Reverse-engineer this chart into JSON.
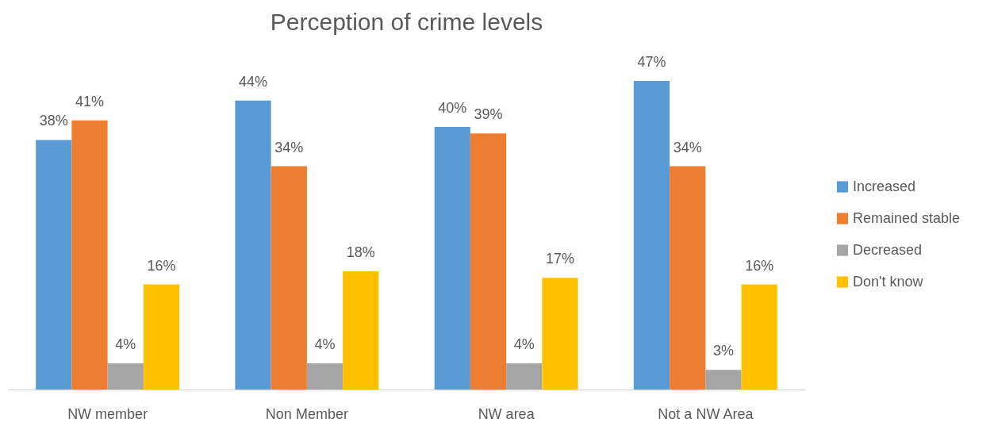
{
  "chart_data": {
    "type": "bar",
    "title": "Perception of crime levels",
    "categories": [
      "NW member",
      "Non Member",
      "NW area",
      "Not a NW Area"
    ],
    "series": [
      {
        "name": "Increased",
        "color": "#5b9bd5",
        "values": [
          38,
          44,
          40,
          47
        ],
        "value_labels": [
          "38%",
          "44%",
          "40%",
          "47%"
        ]
      },
      {
        "name": "Remained stable",
        "color": "#ed7d31",
        "values": [
          41,
          34,
          39,
          34
        ],
        "value_labels": [
          "41%",
          "34%",
          "39%",
          "34%"
        ]
      },
      {
        "name": "Decreased",
        "color": "#a5a5a5",
        "values": [
          4,
          4,
          4,
          3
        ],
        "value_labels": [
          "4%",
          "4%",
          "4%",
          "3%"
        ]
      },
      {
        "name": "Don't know",
        "color": "#ffc000",
        "values": [
          16,
          18,
          17,
          16
        ],
        "value_labels": [
          "16%",
          "18%",
          "17%",
          "16%"
        ]
      }
    ],
    "legend": "right",
    "tick_labels": "x"
  }
}
